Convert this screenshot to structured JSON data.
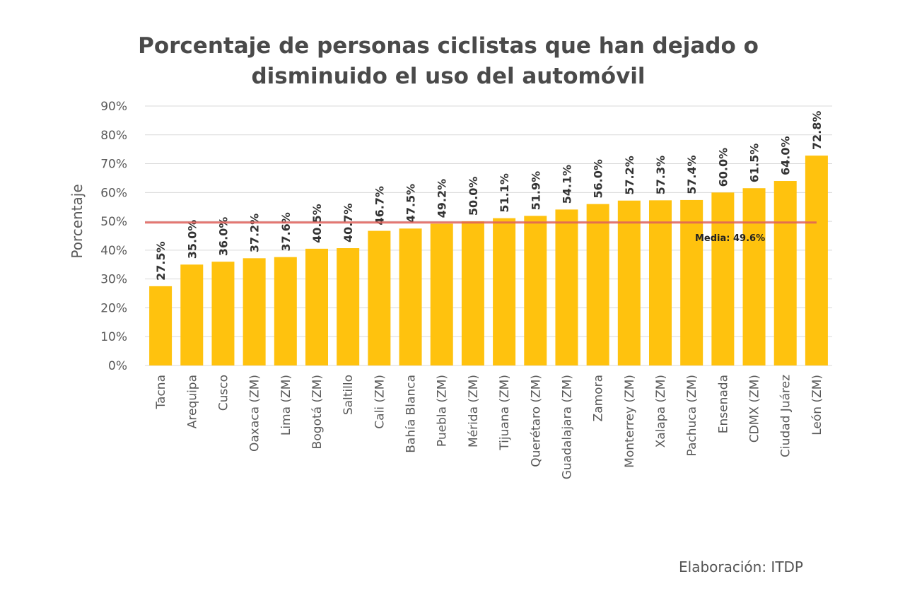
{
  "chart_data": {
    "type": "bar",
    "title": "Porcentaje de personas ciclistas que han dejado o disminuido el uso del automóvil",
    "title_lines": [
      "Porcentaje de personas ciclistas que han dejado o",
      "disminuido el uso del automóvil"
    ],
    "xlabel": "",
    "ylabel": "Porcentaje",
    "ylim": [
      0,
      90
    ],
    "yticks": [
      "0%",
      "10%",
      "20%",
      "30%",
      "40%",
      "50%",
      "60%",
      "70%",
      "80%",
      "90%"
    ],
    "grid": true,
    "categories": [
      "Tacna",
      "Arequipa",
      "Cusco",
      "Oaxaca (ZM)",
      "Lima (ZM)",
      "Bogotá (ZM)",
      "Saltillo",
      "Cali (ZM)",
      "Bahía Blanca",
      "Puebla (ZM)",
      "Mérida (ZM)",
      "Tijuana (ZM)",
      "Querétaro (ZM)",
      "Guadalajara (ZM)",
      "Zamora",
      "Monterrey (ZM)",
      "Xalapa (ZM)",
      "Pachuca (ZM)",
      "Ensenada",
      "CDMX (ZM)",
      "Ciudad Juárez",
      "León (ZM)"
    ],
    "values": [
      27.5,
      35.0,
      36.0,
      37.2,
      37.6,
      40.5,
      40.7,
      46.7,
      47.5,
      49.2,
      50.0,
      51.1,
      51.9,
      54.1,
      56.0,
      57.2,
      57.3,
      57.4,
      60.0,
      61.5,
      64.0,
      72.8
    ],
    "data_labels": [
      "27.5%",
      "35.0%",
      "36.0%",
      "37.2%",
      "37.6%",
      "40.5%",
      "40.7%",
      "46.7%",
      "47.5%",
      "49.2%",
      "50.0%",
      "51.1%",
      "51.9%",
      "54.1%",
      "56.0%",
      "57.2%",
      "57.3%",
      "57.4%",
      "60.0%",
      "61.5%",
      "64.0%",
      "72.8%"
    ],
    "reference_line": {
      "value": 49.6,
      "label": "Media:  49.6%",
      "color": "#e0605a"
    },
    "bar_color": "#FFC20E"
  },
  "credit": "Elaboración: ITDP"
}
